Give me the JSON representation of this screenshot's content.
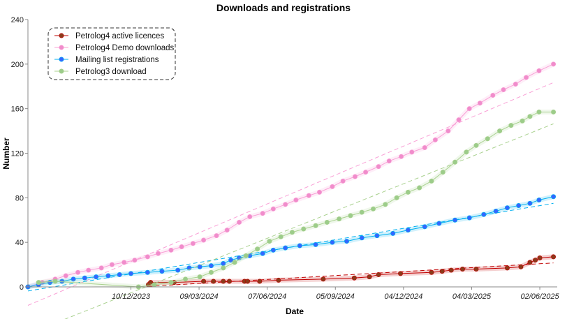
{
  "chart_data": {
    "type": "scatter",
    "title": "Downloads and registrations",
    "xlabel": "Date",
    "ylabel": "Number",
    "xlim": [
      "2023-07-27",
      "2025-06-25"
    ],
    "ylim": [
      0,
      240
    ],
    "y_ticks": [
      0,
      40,
      80,
      120,
      160,
      200,
      240
    ],
    "x_ticks": [
      "2023-12-10",
      "2024-03-09",
      "2024-06-07",
      "2024-09-05",
      "2024-12-04",
      "2025-03-04",
      "2025-06-02"
    ],
    "x_tick_labels": [
      "10/12/2023",
      "09/03/2024",
      "07/06/2024",
      "05/09/2024",
      "04/12/2024",
      "04/03/2025",
      "02/06/2025"
    ],
    "grid": false,
    "legend_position": "top-left",
    "series": [
      {
        "name": "Petrolog4 active licences",
        "color": "#c00000",
        "marker_color": "#8b3a1a",
        "trend": true,
        "points": [
          [
            "2024-01-02",
            2
          ],
          [
            "2024-01-05",
            4
          ],
          [
            "2024-02-05",
            4
          ],
          [
            "2024-03-15",
            5
          ],
          [
            "2024-03-28",
            5
          ],
          [
            "2024-04-10",
            5
          ],
          [
            "2024-04-18",
            5
          ],
          [
            "2024-05-08",
            5
          ],
          [
            "2024-05-12",
            5
          ],
          [
            "2024-05-28",
            5
          ],
          [
            "2024-06-22",
            6
          ],
          [
            "2024-08-20",
            7
          ],
          [
            "2024-09-30",
            8
          ],
          [
            "2024-10-20",
            9
          ],
          [
            "2024-11-01",
            11
          ],
          [
            "2024-11-30",
            12
          ],
          [
            "2025-01-10",
            13
          ],
          [
            "2025-01-24",
            14
          ],
          [
            "2025-02-05",
            15
          ],
          [
            "2025-02-20",
            16
          ],
          [
            "2025-03-10",
            16
          ],
          [
            "2025-04-20",
            17
          ],
          [
            "2025-05-08",
            18
          ],
          [
            "2025-05-20",
            22
          ],
          [
            "2025-05-27",
            24
          ],
          [
            "2025-06-02",
            26
          ],
          [
            "2025-06-20",
            27
          ]
        ]
      },
      {
        "name": "Petrolog4 Demo downloads",
        "color": "#f9a0d6",
        "marker_color": "#f08ccb",
        "trend": true,
        "points": [
          [
            "2023-07-27",
            0
          ],
          [
            "2023-08-15",
            4
          ],
          [
            "2023-09-01",
            7
          ],
          [
            "2023-09-15",
            10
          ],
          [
            "2023-10-01",
            13
          ],
          [
            "2023-10-15",
            15
          ],
          [
            "2023-11-01",
            17
          ],
          [
            "2023-11-15",
            20
          ],
          [
            "2023-12-01",
            22
          ],
          [
            "2023-12-15",
            24
          ],
          [
            "2024-01-01",
            27
          ],
          [
            "2024-01-15",
            30
          ],
          [
            "2024-02-01",
            33
          ],
          [
            "2024-02-15",
            36
          ],
          [
            "2024-03-01",
            39
          ],
          [
            "2024-03-15",
            42
          ],
          [
            "2024-04-01",
            46
          ],
          [
            "2024-04-15",
            51
          ],
          [
            "2024-05-01",
            58
          ],
          [
            "2024-05-15",
            63
          ],
          [
            "2024-06-01",
            66
          ],
          [
            "2024-06-15",
            70
          ],
          [
            "2024-07-01",
            74
          ],
          [
            "2024-07-15",
            78
          ],
          [
            "2024-08-01",
            82
          ],
          [
            "2024-08-15",
            85
          ],
          [
            "2024-09-01",
            90
          ],
          [
            "2024-09-15",
            95
          ],
          [
            "2024-10-01",
            99
          ],
          [
            "2024-10-15",
            103
          ],
          [
            "2024-11-01",
            108
          ],
          [
            "2024-11-15",
            113
          ],
          [
            "2024-12-01",
            117
          ],
          [
            "2024-12-15",
            121
          ],
          [
            "2025-01-01",
            125
          ],
          [
            "2025-01-15",
            132
          ],
          [
            "2025-02-01",
            140
          ],
          [
            "2025-02-15",
            150
          ],
          [
            "2025-03-01",
            160
          ],
          [
            "2025-03-15",
            165
          ],
          [
            "2025-04-01",
            172
          ],
          [
            "2025-04-15",
            177
          ],
          [
            "2025-05-01",
            182
          ],
          [
            "2025-05-15",
            188
          ],
          [
            "2025-06-01",
            194
          ],
          [
            "2025-06-20",
            200
          ]
        ]
      },
      {
        "name": "Mailing list registrations",
        "color": "#00b0f0",
        "marker_color": "#3366ff",
        "trend": true,
        "points": [
          [
            "2023-07-27",
            0
          ],
          [
            "2023-08-10",
            2
          ],
          [
            "2023-08-25",
            4
          ],
          [
            "2023-09-10",
            5
          ],
          [
            "2023-09-25",
            7
          ],
          [
            "2023-10-10",
            8
          ],
          [
            "2023-10-25",
            9
          ],
          [
            "2023-11-10",
            10
          ],
          [
            "2023-11-25",
            11
          ],
          [
            "2023-12-10",
            12
          ],
          [
            "2024-01-01",
            13
          ],
          [
            "2024-01-20",
            14
          ],
          [
            "2024-02-10",
            15
          ],
          [
            "2024-02-25",
            17
          ],
          [
            "2024-03-10",
            18
          ],
          [
            "2024-03-25",
            19
          ],
          [
            "2024-04-10",
            21
          ],
          [
            "2024-04-20",
            24
          ],
          [
            "2024-05-01",
            26
          ],
          [
            "2024-05-15",
            28
          ],
          [
            "2024-06-01",
            30
          ],
          [
            "2024-06-15",
            33
          ],
          [
            "2024-07-01",
            35
          ],
          [
            "2024-07-20",
            37
          ],
          [
            "2024-08-10",
            38
          ],
          [
            "2024-09-01",
            40
          ],
          [
            "2024-09-20",
            41
          ],
          [
            "2024-10-10",
            44
          ],
          [
            "2024-10-30",
            46
          ],
          [
            "2024-11-20",
            48
          ],
          [
            "2024-12-10",
            51
          ],
          [
            "2025-01-01",
            54
          ],
          [
            "2025-01-20",
            57
          ],
          [
            "2025-02-10",
            60
          ],
          [
            "2025-03-01",
            62
          ],
          [
            "2025-03-20",
            65
          ],
          [
            "2025-04-05",
            68
          ],
          [
            "2025-04-20",
            71
          ],
          [
            "2025-05-05",
            73
          ],
          [
            "2025-05-20",
            75
          ],
          [
            "2025-06-01",
            78
          ],
          [
            "2025-06-20",
            81
          ]
        ]
      },
      {
        "name": "Petrolog3 download",
        "color": "#a9d18e",
        "marker_color": "#9ccc8a",
        "trend": true,
        "points": [
          [
            "2023-08-10",
            4
          ],
          [
            "2023-09-01",
            5
          ],
          [
            "2023-12-20",
            0
          ],
          [
            "2024-01-10",
            2
          ],
          [
            "2024-02-01",
            4
          ],
          [
            "2024-02-20",
            7
          ],
          [
            "2024-03-10",
            9
          ],
          [
            "2024-03-25",
            13
          ],
          [
            "2024-04-10",
            17
          ],
          [
            "2024-04-25",
            22
          ],
          [
            "2024-05-10",
            28
          ],
          [
            "2024-05-25",
            34
          ],
          [
            "2024-06-10",
            41
          ],
          [
            "2024-06-25",
            45
          ],
          [
            "2024-07-10",
            49
          ],
          [
            "2024-07-25",
            52
          ],
          [
            "2024-08-10",
            55
          ],
          [
            "2024-08-25",
            58
          ],
          [
            "2024-09-10",
            61
          ],
          [
            "2024-09-25",
            64
          ],
          [
            "2024-10-10",
            67
          ],
          [
            "2024-10-25",
            70
          ],
          [
            "2024-11-10",
            74
          ],
          [
            "2024-11-25",
            80
          ],
          [
            "2024-12-10",
            85
          ],
          [
            "2024-12-25",
            89
          ],
          [
            "2025-01-10",
            95
          ],
          [
            "2025-01-25",
            103
          ],
          [
            "2025-02-10",
            112
          ],
          [
            "2025-02-25",
            121
          ],
          [
            "2025-03-10",
            127
          ],
          [
            "2025-03-25",
            133
          ],
          [
            "2025-04-10",
            140
          ],
          [
            "2025-04-25",
            145
          ],
          [
            "2025-05-10",
            149
          ],
          [
            "2025-05-20",
            153
          ],
          [
            "2025-06-01",
            157
          ],
          [
            "2025-06-20",
            157
          ]
        ]
      }
    ]
  }
}
